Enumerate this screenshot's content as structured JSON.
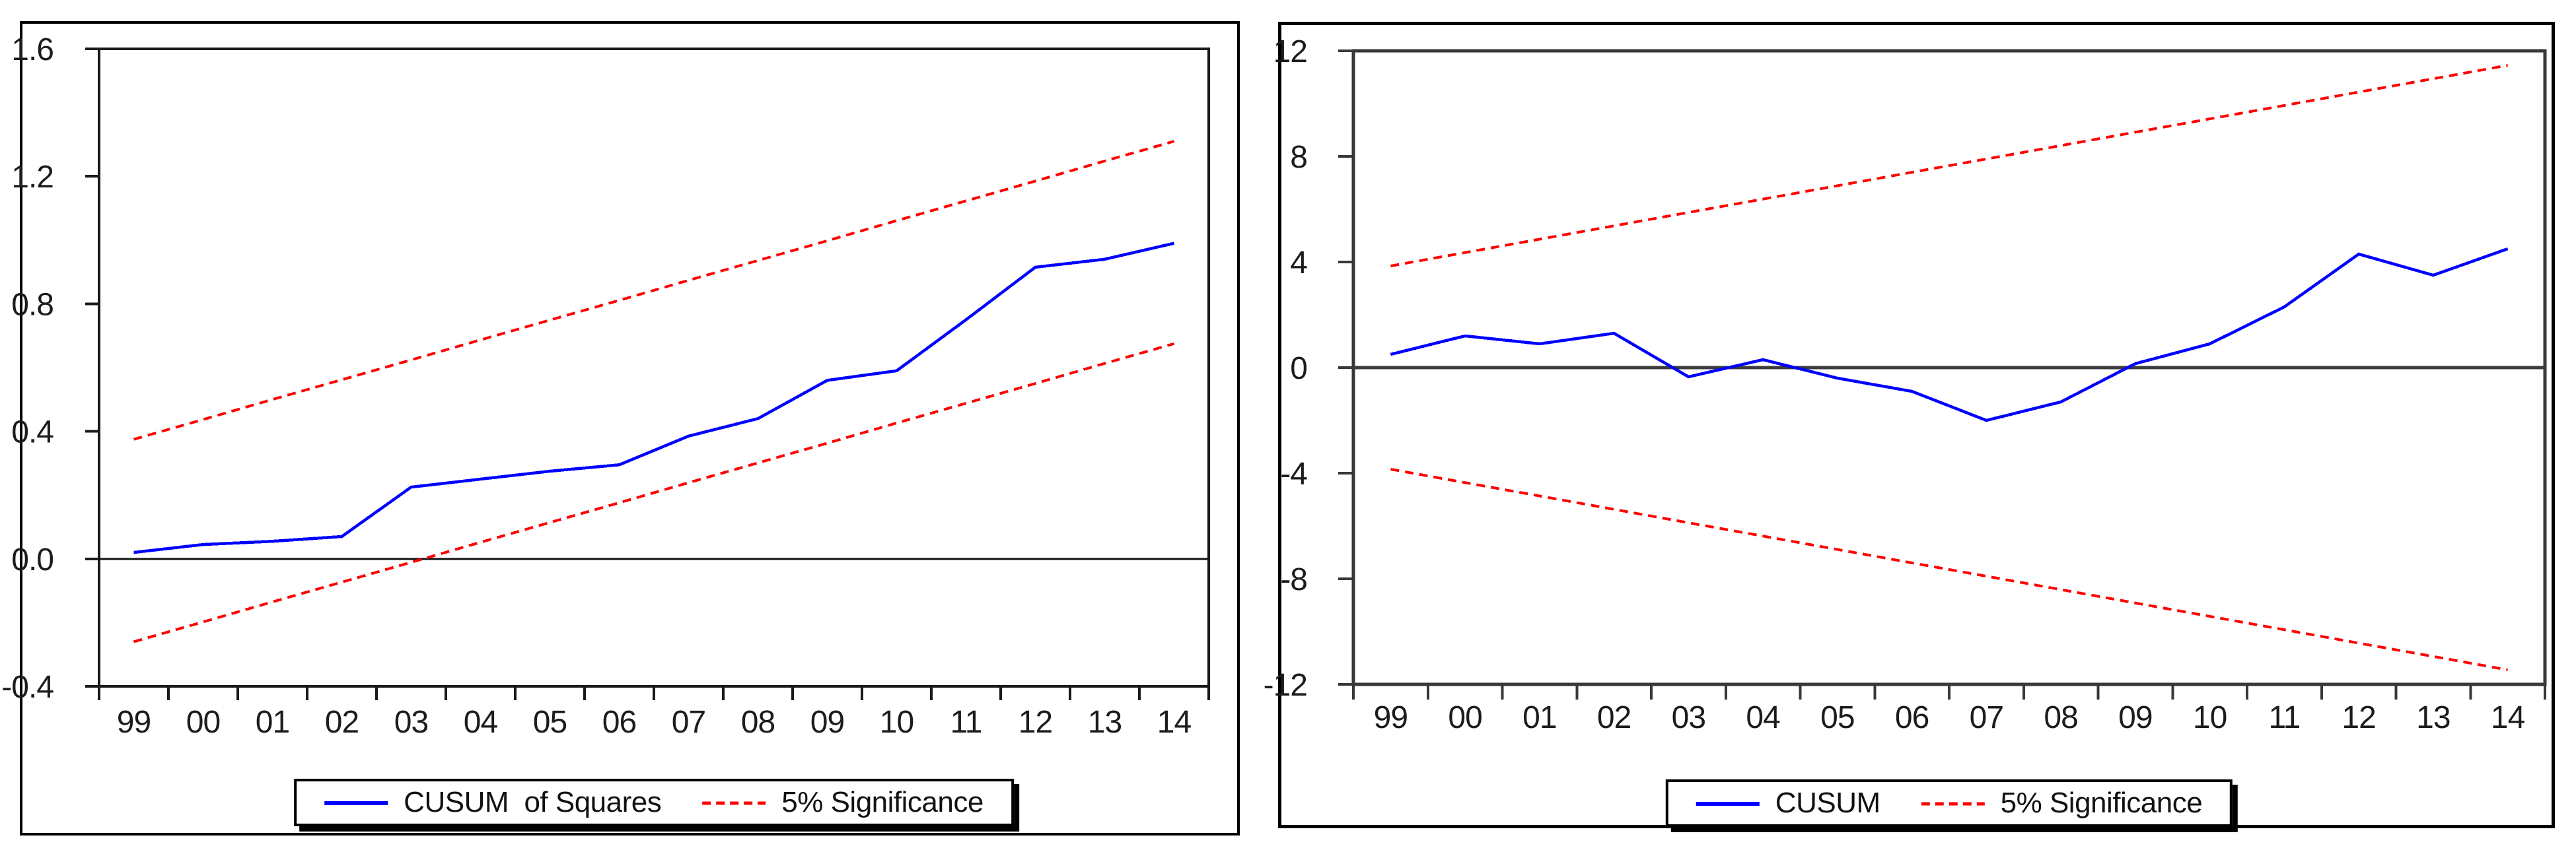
{
  "page": {
    "background": "#ffffff",
    "accent_blue": "#0000ff",
    "accent_red": "#ff0000"
  },
  "chart_data": [
    {
      "type": "line",
      "title": "",
      "panel": "left",
      "x_labels": [
        "99",
        "00",
        "01",
        "02",
        "03",
        "04",
        "05",
        "06",
        "07",
        "08",
        "09",
        "10",
        "11",
        "12",
        "13",
        "14"
      ],
      "ylim": [
        -0.4,
        1.6
      ],
      "yticks": [
        -0.4,
        0.0,
        0.4,
        0.8,
        1.2,
        1.6
      ],
      "ytick_labels": [
        "-0.4",
        "0.0",
        "0.4",
        "0.8",
        "1.2",
        "1.6"
      ],
      "grid": false,
      "zero_line": 0.0,
      "legend_position": "bottom-center",
      "series": [
        {
          "name": "CUSUM of Squares",
          "color": "#0000ff",
          "style": "solid",
          "values": [
            0.02,
            0.045,
            0.055,
            0.07,
            0.225,
            0.25,
            0.275,
            0.295,
            0.385,
            0.44,
            0.56,
            0.59,
            0.75,
            0.915,
            0.94,
            0.99
          ]
        },
        {
          "name": "5% Significance (upper band)",
          "color": "#ff0000",
          "style": "dashed",
          "values": [
            0.375,
            0.437,
            0.5,
            0.562,
            0.624,
            0.687,
            0.749,
            0.811,
            0.874,
            0.936,
            0.998,
            1.061,
            1.123,
            1.185,
            1.248,
            1.31
          ]
        },
        {
          "name": "5% Significance (lower band)",
          "color": "#ff0000",
          "style": "dashed",
          "values": [
            -0.26,
            -0.198,
            -0.135,
            -0.073,
            -0.011,
            0.052,
            0.114,
            0.176,
            0.239,
            0.301,
            0.363,
            0.426,
            0.488,
            0.55,
            0.613,
            0.675
          ]
        }
      ],
      "legend": {
        "entries": [
          {
            "label": "CUSUM  of Squares",
            "color": "#0000ff",
            "style": "solid"
          },
          {
            "label": "5% Significance",
            "color": "#ff0000",
            "style": "dashed"
          }
        ]
      }
    },
    {
      "type": "line",
      "title": "",
      "panel": "right",
      "x_labels": [
        "99",
        "00",
        "01",
        "02",
        "03",
        "04",
        "05",
        "06",
        "07",
        "08",
        "09",
        "10",
        "11",
        "12",
        "13",
        "14"
      ],
      "ylim": [
        -12,
        12
      ],
      "yticks": [
        -12,
        -8,
        -4,
        0,
        4,
        8,
        12
      ],
      "ytick_labels": [
        "-12",
        "-8",
        "-4",
        "0",
        "4",
        "8",
        "12"
      ],
      "grid": false,
      "zero_line": 0.0,
      "legend_position": "bottom-center",
      "series": [
        {
          "name": "CUSUM",
          "color": "#0000ff",
          "style": "solid",
          "values": [
            0.5,
            1.2,
            0.9,
            1.3,
            -0.35,
            0.3,
            -0.4,
            -0.9,
            -2.0,
            -1.3,
            0.15,
            0.9,
            2.3,
            4.3,
            3.5,
            4.5
          ]
        },
        {
          "name": "5% Significance (upper band)",
          "color": "#ff0000",
          "style": "dashed",
          "values": [
            3.85,
            4.357,
            4.863,
            5.37,
            5.877,
            6.383,
            6.89,
            7.397,
            7.903,
            8.41,
            8.917,
            9.423,
            9.93,
            10.437,
            10.943,
            11.45
          ]
        },
        {
          "name": "5% Significance (lower band)",
          "color": "#ff0000",
          "style": "dashed",
          "values": [
            -3.85,
            -4.357,
            -4.863,
            -5.37,
            -5.877,
            -6.383,
            -6.89,
            -7.397,
            -7.903,
            -8.41,
            -8.917,
            -9.423,
            -9.93,
            -10.437,
            -10.943,
            -11.45
          ]
        }
      ],
      "legend": {
        "entries": [
          {
            "label": "CUSUM",
            "color": "#0000ff",
            "style": "solid"
          },
          {
            "label": "5% Significance",
            "color": "#ff0000",
            "style": "dashed"
          }
        ]
      }
    }
  ]
}
